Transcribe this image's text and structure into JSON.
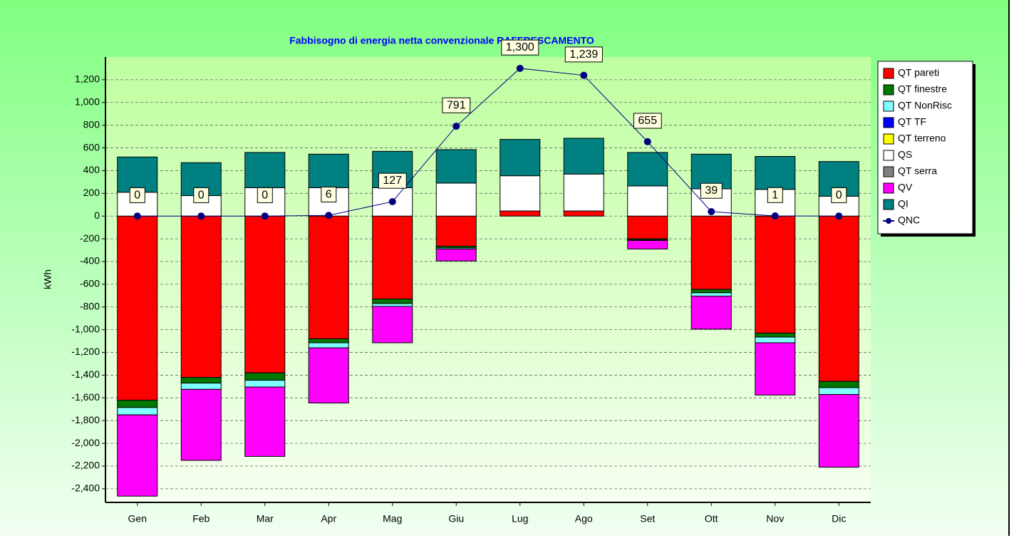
{
  "chart_data": {
    "type": "bar",
    "title": "Fabbisogno di energia netta convenzionale RAFFRESCAMENTO",
    "y_label": "kWh",
    "stacked": true,
    "categories": [
      "Gen",
      "Feb",
      "Mar",
      "Apr",
      "Mag",
      "Giu",
      "Lug",
      "Ago",
      "Set",
      "Ott",
      "Nov",
      "Dic"
    ],
    "series": [
      {
        "name": "QT pareti",
        "color": "#ff0000",
        "values": [
          -1620,
          -1420,
          -1380,
          -1080,
          -730,
          -265,
          45,
          45,
          -200,
          -645,
          -1030,
          -1455
        ]
      },
      {
        "name": "QT finestre",
        "color": "#007800",
        "values": [
          -65,
          -50,
          -65,
          -35,
          -40,
          -15,
          0,
          0,
          -10,
          -30,
          -35,
          -55
        ]
      },
      {
        "name": "QT NonRisc",
        "color": "#80ffff",
        "values": [
          -65,
          -55,
          -60,
          -45,
          -25,
          -10,
          0,
          0,
          -5,
          -30,
          -50,
          -60
        ]
      },
      {
        "name": "QT TF",
        "color": "#0000ff",
        "values": [
          0,
          0,
          0,
          0,
          0,
          0,
          0,
          0,
          0,
          0,
          0,
          0
        ]
      },
      {
        "name": "QT terreno",
        "color": "#ffff00",
        "values": [
          0,
          0,
          0,
          0,
          0,
          0,
          0,
          0,
          0,
          0,
          0,
          0
        ]
      },
      {
        "name": "QS",
        "color": "#ffffff",
        "values": [
          210,
          180,
          250,
          250,
          250,
          290,
          310,
          325,
          265,
          240,
          235,
          175
        ]
      },
      {
        "name": "QT serra",
        "color": "#808080",
        "values": [
          0,
          0,
          0,
          0,
          0,
          0,
          0,
          0,
          0,
          0,
          0,
          0
        ]
      },
      {
        "name": "QV",
        "color": "#ff00ff",
        "values": [
          -715,
          -625,
          -610,
          -485,
          -320,
          -105,
          0,
          0,
          -75,
          -290,
          -460,
          -640
        ]
      },
      {
        "name": "QI",
        "color": "#008080",
        "values": [
          310,
          290,
          310,
          295,
          320,
          295,
          320,
          315,
          295,
          305,
          290,
          305
        ]
      },
      {
        "name": "QNC",
        "color": "#000080",
        "type": "line",
        "values": [
          0,
          0,
          0,
          6,
          127,
          791,
          1300,
          1239,
          655,
          39,
          1,
          0
        ],
        "value_labels": [
          "0",
          "0",
          "0",
          "6",
          "127",
          "791",
          "1,300",
          "1,239",
          "655",
          "39",
          "1",
          "0"
        ]
      }
    ],
    "ylim": [
      -2520,
      1400
    ],
    "yticks": [
      {
        "value": -2400,
        "label": "-2,400"
      },
      {
        "value": -2200,
        "label": "-2,200"
      },
      {
        "value": -2000,
        "label": "-2,000"
      },
      {
        "value": -1800,
        "label": "-1,800"
      },
      {
        "value": -1600,
        "label": "-1,600"
      },
      {
        "value": -1400,
        "label": "-1,400"
      },
      {
        "value": -1200,
        "label": "-1,200"
      },
      {
        "value": -1000,
        "label": "-1,000"
      },
      -800,
      -600,
      -400,
      -200,
      0,
      200,
      400,
      600,
      800,
      {
        "value": 1000,
        "label": "1,000"
      },
      {
        "value": 1200,
        "label": "1,200"
      }
    ],
    "grid": true,
    "legend": "right"
  }
}
